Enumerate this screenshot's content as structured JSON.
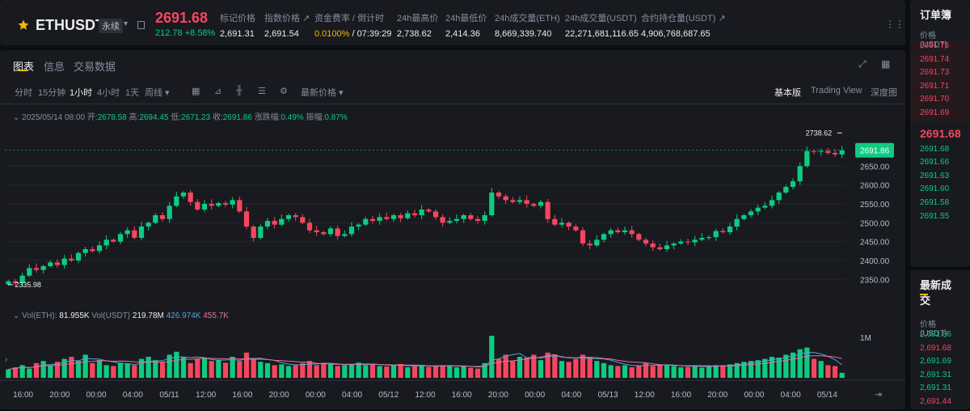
{
  "header": {
    "symbol": "ETHUSDT",
    "contract_type": "永续",
    "last_price": "2691.68",
    "change": "212.78",
    "change_pct": "+8.58%",
    "stats": [
      {
        "label": "标记价格",
        "value": "2,691.31"
      },
      {
        "label": "指数价格 ↗",
        "value": "2,691.54"
      },
      {
        "label": "资金费率 / 倒计时",
        "value": "0.0100%",
        "value2": " / 07:39:29"
      },
      {
        "label": "24h最高价",
        "value": "2,738.62"
      },
      {
        "label": "24h最低价",
        "value": "2,414.36"
      },
      {
        "label": "24h成交量(ETH)",
        "value": "8,669,339.740"
      },
      {
        "label": "24h成交量(USDT)",
        "value": "22,271,681,116.65"
      },
      {
        "label": "合约持仓量(USDT) ↗",
        "value": "4,906,768,687.65"
      }
    ]
  },
  "tabs": [
    "图表",
    "信息",
    "交易数据"
  ],
  "toolbar": {
    "timeframes": [
      "分时",
      "15分钟",
      "1小时",
      "4小时",
      "1天",
      "周线 ▾"
    ],
    "price_type": "最新价格 ▾",
    "views": [
      "基本版",
      "Trading View",
      "深度图"
    ]
  },
  "ohlc_info": {
    "date": "2025/05/14 08:00",
    "open_label": "开:",
    "open": "2678.58",
    "high_label": "高:",
    "high": "2694.45",
    "low_label": "低:",
    "low": "2671.23",
    "close_label": "收:",
    "close": "2691.86",
    "chg_label": "涨跌幅:",
    "chg": "0.49%",
    "amp_label": "振幅:",
    "amp": "0.87%"
  },
  "volume_info": {
    "vol_eth_label": "Vol(ETH):",
    "vol_eth": "81.955K",
    "vol_usdt_label": "Vol(USDT)",
    "vol_usdt": "219.78M",
    "ma1": "426.974K",
    "ma2": "455.7K"
  },
  "orderbook": {
    "title": "订单簿",
    "header": "价格 (USDT)",
    "asks": [
      "2691.75",
      "2691.74",
      "2691.73",
      "2691.71",
      "2691.70",
      "2691.69"
    ],
    "last": "2691.68",
    "bids": [
      "2691.68",
      "2691.66",
      "2691.63",
      "2691.60",
      "2691.58",
      "2691.55"
    ]
  },
  "trades": {
    "title": "最新成交",
    "header": "价格 (USDT)",
    "rows": [
      {
        "p": "2,691.86",
        "side": "buy"
      },
      {
        "p": "2,691.68",
        "side": "sell"
      },
      {
        "p": "2,691.69",
        "side": "buy"
      },
      {
        "p": "2,691.31",
        "side": "buy"
      },
      {
        "p": "2,691.31",
        "side": "buy"
      },
      {
        "p": "2,691.44",
        "side": "sell"
      }
    ]
  },
  "colors": {
    "up": "#0ecb81",
    "down": "#f6465d",
    "accent": "#f0b90b",
    "bg": "#181a20"
  },
  "chart_data": {
    "type": "candlestick",
    "y_ticks": [
      "2650.00",
      "2600.00",
      "2550.00",
      "2500.00",
      "2450.00",
      "2400.00",
      "2350.00"
    ],
    "ylim": [
      2310,
      2760
    ],
    "x_ticks": [
      "16:00",
      "20:00",
      "00:00",
      "04:00",
      "05/11",
      "12:00",
      "16:00",
      "20:00",
      "00:00",
      "04:00",
      "05/12",
      "12:00",
      "16:00",
      "20:00",
      "00:00",
      "04:00",
      "05/13",
      "12:00",
      "16:00",
      "20:00",
      "00:00",
      "04:00",
      "05/14"
    ],
    "current_price_label": "2691.86",
    "high_marker": "2738.62",
    "low_marker": "2335.98",
    "volume_axis_label": "1M",
    "closes": [
      2345,
      2340,
      2360,
      2380,
      2375,
      2385,
      2395,
      2388,
      2405,
      2400,
      2420,
      2430,
      2425,
      2440,
      2455,
      2450,
      2470,
      2480,
      2460,
      2490,
      2500,
      2520,
      2510,
      2545,
      2570,
      2580,
      2555,
      2535,
      2550,
      2545,
      2552,
      2548,
      2560,
      2530,
      2490,
      2460,
      2490,
      2505,
      2495,
      2510,
      2520,
      2515,
      2500,
      2480,
      2475,
      2470,
      2485,
      2465,
      2470,
      2490,
      2495,
      2510,
      2505,
      2515,
      2510,
      2520,
      2512,
      2525,
      2520,
      2535,
      2530,
      2515,
      2500,
      2505,
      2510,
      2520,
      2510,
      2505,
      2520,
      2580,
      2570,
      2560,
      2555,
      2560,
      2550,
      2545,
      2555,
      2510,
      2495,
      2500,
      2490,
      2480,
      2445,
      2440,
      2455,
      2470,
      2480,
      2475,
      2480,
      2470,
      2455,
      2445,
      2435,
      2430,
      2440,
      2445,
      2450,
      2448,
      2455,
      2460,
      2462,
      2478,
      2475,
      2490,
      2510,
      2520,
      2530,
      2540,
      2545,
      2560,
      2580,
      2595,
      2610,
      2650,
      2690,
      2688,
      2690,
      2685,
      2681,
      2692
    ],
    "volumes": [
      0.2,
      0.25,
      0.3,
      0.22,
      0.35,
      0.4,
      0.3,
      0.38,
      0.45,
      0.5,
      0.4,
      0.55,
      0.35,
      0.42,
      0.3,
      0.28,
      0.36,
      0.33,
      0.3,
      0.45,
      0.5,
      0.42,
      0.38,
      0.55,
      0.62,
      0.5,
      0.35,
      0.45,
      0.48,
      0.4,
      0.42,
      0.36,
      0.5,
      0.4,
      0.6,
      0.45,
      0.38,
      0.35,
      0.3,
      0.32,
      0.28,
      0.3,
      0.35,
      0.4,
      0.3,
      0.36,
      0.32,
      0.28,
      0.3,
      0.33,
      0.36,
      0.3,
      0.32,
      0.28,
      0.27,
      0.3,
      0.33,
      0.25,
      0.28,
      0.3,
      0.26,
      0.28,
      0.3,
      0.3,
      0.25,
      0.28,
      0.24,
      0.22,
      0.35,
      1.0,
      0.45,
      0.55,
      0.4,
      0.5,
      0.48,
      0.55,
      0.42,
      0.6,
      0.55,
      0.4,
      0.38,
      0.45,
      0.55,
      0.5,
      0.4,
      0.35,
      0.3,
      0.28,
      0.3,
      0.25,
      0.3,
      0.35,
      0.28,
      0.32,
      0.3,
      0.28,
      0.25,
      0.26,
      0.3,
      0.24,
      0.28,
      0.3,
      0.3,
      0.32,
      0.35,
      0.38,
      0.4,
      0.42,
      0.45,
      0.5,
      0.48,
      0.55,
      0.6,
      0.68,
      0.72,
      0.45,
      0.4,
      0.3,
      0.28,
      0.12
    ]
  }
}
